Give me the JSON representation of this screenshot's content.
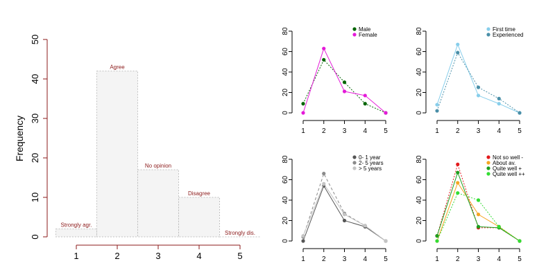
{
  "chart_data": [
    {
      "type": "bar",
      "ylabel": "Frequency",
      "x_ticks": [
        "1",
        "2",
        "3",
        "4",
        "5"
      ],
      "y_ticks": [
        "0",
        "10",
        "20",
        "30",
        "40",
        "50"
      ],
      "ylim": [
        0,
        50
      ],
      "categories": [
        "Strongly agr.",
        "Agree",
        "No opinion",
        "Disagree",
        "Strongly dis."
      ],
      "values": [
        2,
        42,
        17,
        10,
        0
      ],
      "bar_fill": "#f4f4f4",
      "bar_border": "#c0c0c0",
      "axis_color": "#8b1a1a",
      "label_color": "#8b1a1a"
    },
    {
      "type": "line",
      "x": [
        1,
        2,
        3,
        4,
        5
      ],
      "ylim": [
        0,
        80
      ],
      "x_ticks": [
        "1",
        "2",
        "3",
        "4",
        "5"
      ],
      "y_ticks": [
        "0",
        "20",
        "40",
        "60",
        "80"
      ],
      "legend": "top-right",
      "series": [
        {
          "name": "Male",
          "values": [
            9,
            52,
            30,
            9,
            0
          ],
          "color": "#006400",
          "dash": "2,2"
        },
        {
          "name": "Female",
          "values": [
            0,
            63,
            21,
            17,
            0
          ],
          "color": "#e41ad8",
          "dash": ""
        }
      ]
    },
    {
      "type": "line",
      "x": [
        1,
        2,
        3,
        4,
        5
      ],
      "ylim": [
        0,
        80
      ],
      "x_ticks": [
        "1",
        "2",
        "3",
        "4",
        "5"
      ],
      "y_ticks": [
        "0",
        "20",
        "40",
        "60",
        "80"
      ],
      "legend": "top-right",
      "series": [
        {
          "name": "First time",
          "values": [
            8,
            67,
            17,
            9,
            0
          ],
          "color": "#87ceeb",
          "dash": ""
        },
        {
          "name": "Experienced",
          "values": [
            2,
            59,
            25,
            14,
            0
          ],
          "color": "#4a8fa8",
          "dash": "2,2"
        }
      ]
    },
    {
      "type": "line",
      "x": [
        1,
        2,
        3,
        4,
        5
      ],
      "ylim": [
        0,
        80
      ],
      "x_ticks": [
        "1",
        "2",
        "3",
        "4",
        "5"
      ],
      "y_ticks": [
        "0",
        "20",
        "40",
        "60",
        "80"
      ],
      "legend": "top-right",
      "series": [
        {
          "name": "0- 1 year",
          "values": [
            0,
            54,
            20,
            14,
            0
          ],
          "color": "#555555",
          "dash": ""
        },
        {
          "name": "2- 5 years",
          "values": [
            4,
            66,
            27,
            15,
            0
          ],
          "color": "#8a8a8a",
          "dash": "4,3"
        },
        {
          "name": "> 5 years",
          "values": [
            5,
            56,
            26,
            15,
            0
          ],
          "color": "#c4c4c4",
          "dash": ""
        }
      ]
    },
    {
      "type": "line",
      "x": [
        1,
        2,
        3,
        4,
        5
      ],
      "ylim": [
        0,
        80
      ],
      "x_ticks": [
        "1",
        "2",
        "3",
        "4",
        "5"
      ],
      "y_ticks": [
        "0",
        "20",
        "40",
        "60",
        "80"
      ],
      "legend": "top-right",
      "series": [
        {
          "name": "Not so well -",
          "values": [
            5,
            75,
            13,
            13,
            0
          ],
          "color": "#e31a1c",
          "dash": "2,2"
        },
        {
          "name": "About av.",
          "values": [
            0,
            57,
            26,
            14,
            0
          ],
          "color": "#f5a623",
          "dash": ""
        },
        {
          "name": "Quite well +",
          "values": [
            5,
            67,
            14,
            13,
            0
          ],
          "color": "#1e9e1e",
          "dash": ""
        },
        {
          "name": "Quite well ++",
          "values": [
            0,
            47,
            40,
            14,
            0
          ],
          "color": "#33dd33",
          "dash": "2,2"
        }
      ]
    }
  ]
}
